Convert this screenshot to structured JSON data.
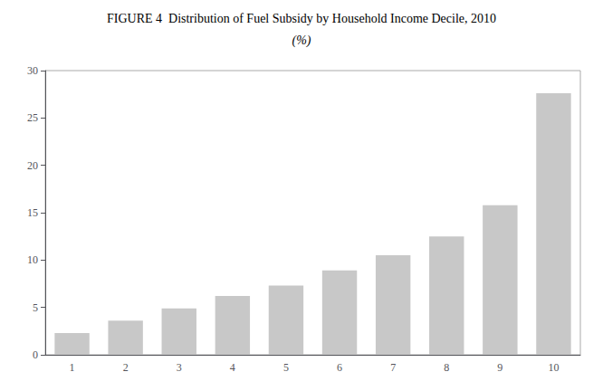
{
  "chart_data": {
    "type": "bar",
    "title": "FIGURE 4  Distribution of Fuel Subsidy by Household Income Decile, 2010",
    "subtitle": "(%)",
    "categories": [
      1,
      2,
      3,
      4,
      5,
      6,
      7,
      8,
      9,
      10
    ],
    "values": [
      2.3,
      3.6,
      4.9,
      6.2,
      7.3,
      8.9,
      10.5,
      12.5,
      15.8,
      27.6
    ],
    "color": "#c8c8c8",
    "ylim": [
      0,
      30
    ],
    "yticks": [
      0,
      5,
      10,
      15,
      20,
      25,
      30
    ],
    "grid": false
  }
}
